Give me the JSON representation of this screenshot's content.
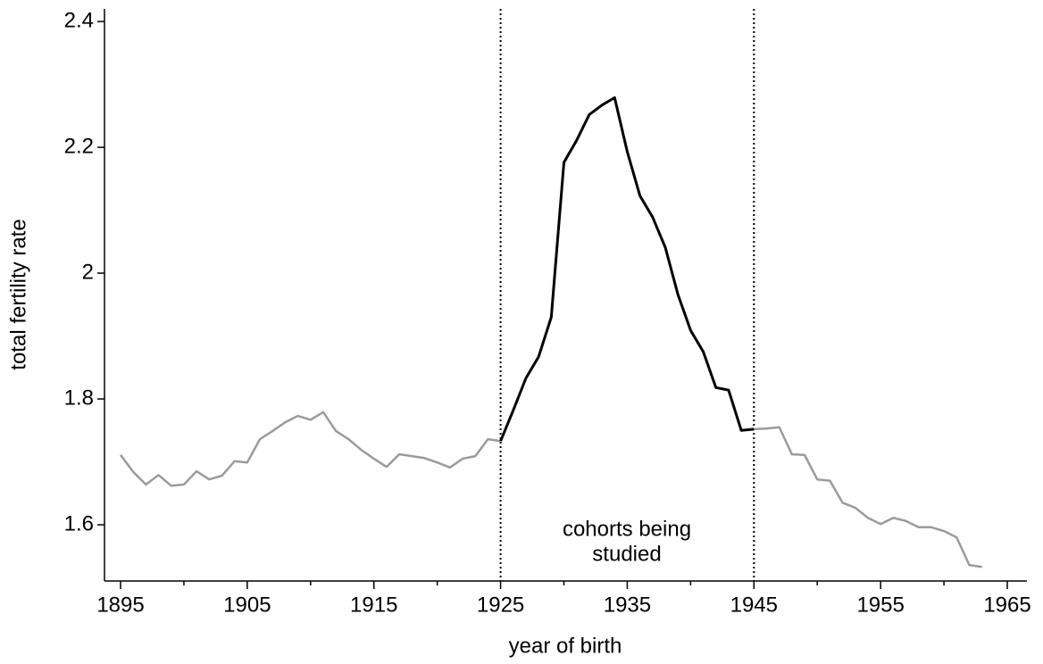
{
  "chart_data": {
    "type": "line",
    "x_label": "year of birth",
    "y_label": "total fertility rate",
    "annotation": [
      "cohorts being",
      "studied"
    ],
    "xlim": [
      1893.73,
      1966.55
    ],
    "ylim": [
      1.5106,
      2.42
    ],
    "xticks": [
      1895,
      1905,
      1915,
      1925,
      1935,
      1945,
      1955,
      1965
    ],
    "xminor_ticks": [
      1900,
      1910,
      1920,
      1930,
      1940,
      1950,
      1960
    ],
    "yticks": [
      1.6,
      1.8,
      2,
      2.2,
      2.4
    ],
    "vlines": [
      1925,
      1945
    ],
    "grid": false,
    "series": [
      {
        "color": "#9b9b9b",
        "x": [
          1895,
          1896,
          1897,
          1898,
          1899,
          1900,
          1901,
          1902,
          1903,
          1904,
          1905,
          1906,
          1907,
          1908,
          1909,
          1910,
          1911,
          1912,
          1913,
          1914,
          1915,
          1916,
          1917,
          1918,
          1919,
          1920,
          1921,
          1922,
          1923,
          1924,
          1925
        ],
        "values": [
          1.711,
          1.684,
          1.664,
          1.679,
          1.662,
          1.664,
          1.685,
          1.672,
          1.678,
          1.701,
          1.699,
          1.736,
          1.749,
          1.763,
          1.773,
          1.767,
          1.779,
          1.749,
          1.736,
          1.719,
          1.705,
          1.692,
          1.712,
          1.709,
          1.706,
          1.699,
          1.691,
          1.705,
          1.709,
          1.736,
          1.733
        ]
      },
      {
        "color": "#000000",
        "x": [
          1925,
          1926,
          1927,
          1928,
          1929,
          1930,
          1931,
          1932,
          1933,
          1934,
          1935,
          1936,
          1937,
          1938,
          1939,
          1940,
          1941,
          1942,
          1943,
          1944,
          1945
        ],
        "values": [
          1.733,
          1.782,
          1.833,
          1.867,
          1.93,
          2.176,
          2.211,
          2.252,
          2.267,
          2.279,
          2.193,
          2.123,
          2.089,
          2.041,
          1.966,
          1.909,
          1.875,
          1.818,
          1.814,
          1.75,
          1.752
        ]
      },
      {
        "color": "#9b9b9b",
        "x": [
          1945,
          1946,
          1947,
          1948,
          1949,
          1950,
          1951,
          1952,
          1953,
          1954,
          1955,
          1956,
          1957,
          1958,
          1959,
          1960,
          1961,
          1962,
          1963
        ],
        "values": [
          1.752,
          1.753,
          1.755,
          1.712,
          1.711,
          1.672,
          1.67,
          1.635,
          1.627,
          1.611,
          1.601,
          1.611,
          1.606,
          1.596,
          1.596,
          1.59,
          1.58,
          1.536,
          1.533
        ]
      }
    ]
  }
}
